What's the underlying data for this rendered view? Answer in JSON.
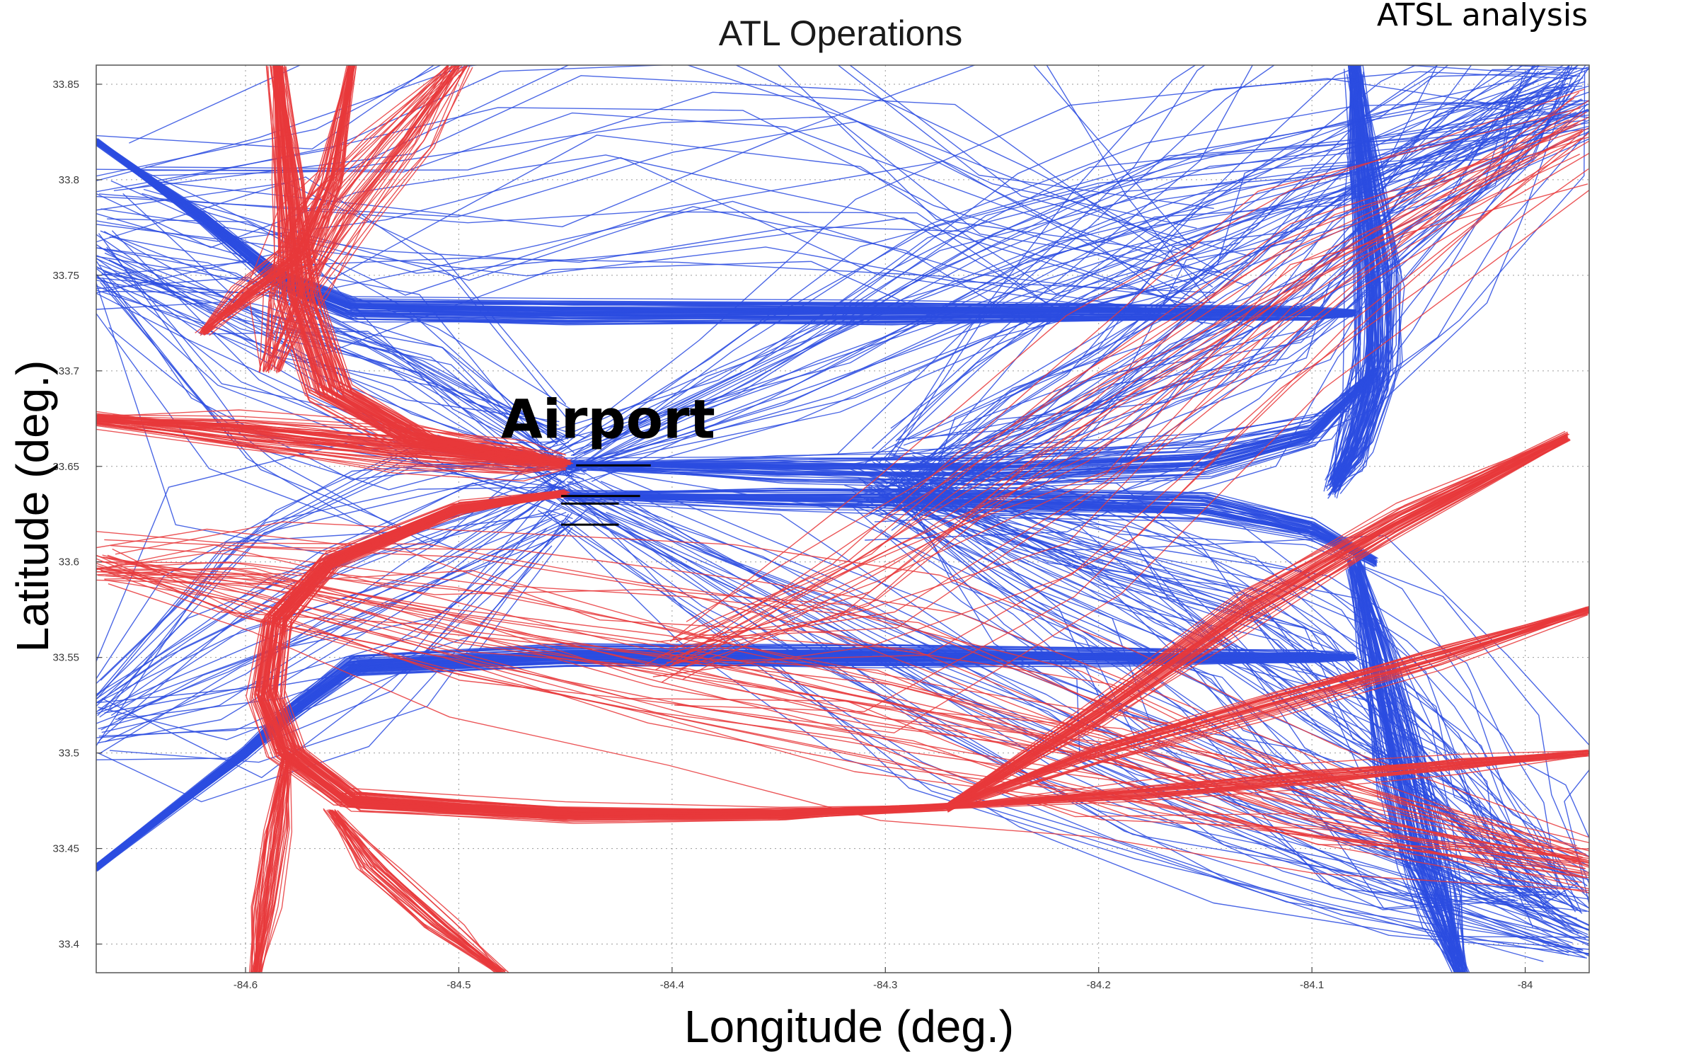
{
  "chart_data": {
    "type": "line",
    "title": "ATL Operations",
    "source_note": "ATSL analysis",
    "xlabel": "Longitude (deg.)",
    "ylabel": "Latitude (deg.)",
    "xlim": [
      -84.67,
      -83.97
    ],
    "ylim": [
      33.385,
      33.86
    ],
    "x_ticks": [
      -84.6,
      -84.5,
      -84.4,
      -84.3,
      -84.2,
      -84.1,
      -84.0
    ],
    "x_tick_labels": [
      "-84.6",
      "-84.5",
      "-84.4",
      "-84.3",
      "-84.2",
      "-84.1",
      "-84"
    ],
    "y_ticks": [
      33.4,
      33.45,
      33.5,
      33.55,
      33.6,
      33.65,
      33.7,
      33.75,
      33.8,
      33.85
    ],
    "y_tick_labels": [
      "33.4",
      "33.45",
      "33.5",
      "33.55",
      "33.6",
      "33.65",
      "33.7",
      "33.75",
      "33.8",
      "33.85"
    ],
    "grid": true,
    "grid_style": "dotted",
    "annotation": {
      "text": "Airport",
      "x": -84.43,
      "y": 33.665
    },
    "colors": {
      "red": "#e8383b",
      "blue": "#2b4ce0",
      "runway": "#000000"
    },
    "runways": [
      {
        "x": [
          -84.445,
          -84.41
        ],
        "y": [
          33.6505,
          33.6505
        ]
      },
      {
        "x": [
          -84.452,
          -84.415
        ],
        "y": [
          33.6345,
          33.6345
        ]
      },
      {
        "x": [
          -84.452,
          -84.425
        ],
        "y": [
          33.6305,
          33.6305
        ]
      },
      {
        "x": [
          -84.452,
          -84.425
        ],
        "y": [
          33.6195,
          33.6195
        ]
      }
    ],
    "bundles": [
      {
        "color": "red",
        "count": 70,
        "spread": [
          0.012,
          0.005
        ],
        "x": [
          -84.585,
          -84.58,
          -84.575,
          -84.56,
          -84.52,
          -84.47,
          -84.45
        ],
        "y": [
          33.86,
          33.8,
          33.74,
          33.69,
          33.665,
          33.655,
          33.652
        ]
      },
      {
        "color": "red",
        "count": 55,
        "spread": [
          0.004,
          0.012
        ],
        "x": [
          -84.67,
          -84.6,
          -84.53,
          -84.47,
          -84.45
        ],
        "y": [
          33.675,
          33.668,
          33.66,
          33.654,
          33.652
        ]
      },
      {
        "color": "red",
        "count": 45,
        "spread": [
          0.008,
          0.005
        ],
        "x": [
          -84.55,
          -84.56,
          -84.575,
          -84.6,
          -84.62
        ],
        "y": [
          33.86,
          33.8,
          33.76,
          33.74,
          33.72
        ]
      },
      {
        "color": "red",
        "count": 35,
        "spread": [
          0.02,
          0.005
        ],
        "x": [
          -84.5,
          -84.53,
          -84.56,
          -84.58,
          -84.59
        ],
        "y": [
          33.86,
          33.82,
          33.78,
          33.74,
          33.7
        ]
      },
      {
        "color": "red",
        "count": 80,
        "spread": [
          0.008,
          0.006
        ],
        "x": [
          -84.45,
          -84.5,
          -84.56,
          -84.585,
          -84.59,
          -84.58,
          -84.55,
          -84.45,
          -84.35,
          -84.27
        ],
        "y": [
          33.636,
          33.628,
          33.6,
          33.57,
          33.53,
          33.5,
          33.475,
          33.468,
          33.468,
          33.472
        ]
      },
      {
        "color": "red",
        "count": 45,
        "spread": [
          0.005,
          0.01
        ],
        "x": [
          -84.27,
          -84.2,
          -84.13,
          -84.06,
          -83.98
        ],
        "y": [
          33.472,
          33.52,
          33.575,
          33.62,
          33.665
        ]
      },
      {
        "color": "red",
        "count": 30,
        "spread": [
          0.005,
          0.008
        ],
        "x": [
          -84.27,
          -84.2,
          -84.12,
          -84.04,
          -83.97
        ],
        "y": [
          33.472,
          33.5,
          33.525,
          33.55,
          33.575
        ]
      },
      {
        "color": "red",
        "count": 30,
        "spread": [
          0.005,
          0.006
        ],
        "x": [
          -84.27,
          -84.18,
          -84.1,
          -84.03,
          -83.97
        ],
        "y": [
          33.472,
          33.48,
          33.488,
          33.495,
          33.5
        ]
      },
      {
        "color": "red",
        "count": 40,
        "spread": [
          0.008,
          0.003
        ],
        "x": [
          -84.58,
          -84.585,
          -84.59,
          -84.595
        ],
        "y": [
          33.5,
          33.46,
          33.42,
          33.385
        ]
      },
      {
        "color": "red",
        "count": 30,
        "spread": [
          0.01,
          0.004
        ],
        "x": [
          -84.56,
          -84.54,
          -84.51,
          -84.48
        ],
        "y": [
          33.47,
          33.44,
          33.41,
          33.385
        ]
      },
      {
        "color": "red",
        "count": 35,
        "spread": [
          0.03,
          0.05
        ],
        "x": [
          -84.67,
          -84.6,
          -84.5,
          -84.4,
          -84.3,
          -84.2,
          -84.1,
          -83.97
        ],
        "y": [
          33.6,
          33.59,
          33.57,
          33.55,
          33.53,
          33.5,
          33.47,
          33.44
        ]
      },
      {
        "color": "red",
        "count": 25,
        "spread": [
          0.03,
          0.08
        ],
        "x": [
          -84.4,
          -84.3,
          -84.2,
          -84.1,
          -83.97
        ],
        "y": [
          33.55,
          33.6,
          33.68,
          33.76,
          33.83
        ]
      },
      {
        "color": "blue",
        "count": 75,
        "spread": [
          0.004,
          0.006
        ],
        "x": [
          -84.67,
          -84.62,
          -84.585,
          -84.55,
          -84.45,
          -84.3,
          -84.2,
          -84.1,
          -84.08
        ],
        "y": [
          33.82,
          33.78,
          33.748,
          33.732,
          33.73,
          33.73,
          33.73,
          33.73,
          33.73
        ]
      },
      {
        "color": "blue",
        "count": 70,
        "spread": [
          0.004,
          0.006
        ],
        "x": [
          -84.67,
          -84.6,
          -84.58,
          -84.55,
          -84.45,
          -84.3,
          -84.2,
          -84.1,
          -84.08
        ],
        "y": [
          33.44,
          33.5,
          33.52,
          33.545,
          33.55,
          33.55,
          33.55,
          33.55,
          33.55
        ]
      },
      {
        "color": "blue",
        "count": 50,
        "spread": [
          0.004,
          0.01
        ],
        "x": [
          -84.45,
          -84.35,
          -84.25,
          -84.15,
          -84.1,
          -84.07
        ],
        "y": [
          33.651,
          33.65,
          33.65,
          33.655,
          33.668,
          33.7
        ]
      },
      {
        "color": "blue",
        "count": 50,
        "spread": [
          0.004,
          0.008
        ],
        "x": [
          -84.45,
          -84.35,
          -84.25,
          -84.15,
          -84.1,
          -84.07
        ],
        "y": [
          33.635,
          33.634,
          33.633,
          33.63,
          33.618,
          33.6
        ]
      },
      {
        "color": "blue",
        "count": 90,
        "spread": [
          0.012,
          0.02
        ],
        "x": [
          -84.08,
          -84.075,
          -84.07,
          -84.07,
          -84.08,
          -84.09
        ],
        "y": [
          33.86,
          33.8,
          33.75,
          33.7,
          33.66,
          33.64
        ]
      },
      {
        "color": "blue",
        "count": 80,
        "spread": [
          0.012,
          0.02
        ],
        "x": [
          -84.08,
          -84.07,
          -84.06,
          -84.05,
          -84.04,
          -84.03
        ],
        "y": [
          33.6,
          33.55,
          33.5,
          33.45,
          33.42,
          33.385
        ]
      },
      {
        "color": "blue",
        "count": 60,
        "spread": [
          0.07,
          0.08
        ],
        "x": [
          -84.3,
          -84.22,
          -84.15,
          -84.1,
          -84.06,
          -84.02,
          -83.98
        ],
        "y": [
          33.64,
          33.68,
          33.72,
          33.76,
          33.8,
          33.83,
          33.86
        ]
      },
      {
        "color": "blue",
        "count": 60,
        "spread": [
          0.07,
          0.06
        ],
        "x": [
          -84.3,
          -84.22,
          -84.15,
          -84.1,
          -84.06,
          -84.02,
          -83.98
        ],
        "y": [
          33.64,
          33.6,
          33.57,
          33.53,
          33.49,
          33.45,
          33.42
        ]
      },
      {
        "color": "blue",
        "count": 45,
        "spread": [
          0.03,
          0.09
        ],
        "x": [
          -84.67,
          -84.6,
          -84.52,
          -84.45
        ],
        "y": [
          33.76,
          33.72,
          33.68,
          33.652
        ]
      },
      {
        "color": "blue",
        "count": 40,
        "spread": [
          0.03,
          0.08
        ],
        "x": [
          -84.67,
          -84.6,
          -84.52,
          -84.45
        ],
        "y": [
          33.52,
          33.56,
          33.6,
          33.636
        ]
      },
      {
        "color": "blue",
        "count": 30,
        "spread": [
          0.06,
          0.05
        ],
        "x": [
          -84.45,
          -84.35,
          -84.25,
          -84.15,
          -84.05,
          -83.97
        ],
        "y": [
          33.652,
          33.7,
          33.76,
          33.8,
          33.82,
          33.84
        ]
      },
      {
        "color": "blue",
        "count": 30,
        "spread": [
          0.06,
          0.05
        ],
        "x": [
          -84.45,
          -84.35,
          -84.25,
          -84.15,
          -84.05,
          -83.97
        ],
        "y": [
          33.636,
          33.58,
          33.52,
          33.47,
          33.43,
          33.4
        ]
      },
      {
        "color": "blue",
        "count": 25,
        "spread": [
          0.1,
          0.1
        ],
        "x": [
          -84.67,
          -84.55,
          -84.45,
          -84.35,
          -84.25,
          -84.15
        ],
        "y": [
          33.8,
          33.79,
          33.82,
          33.83,
          33.78,
          33.75
        ]
      }
    ]
  }
}
